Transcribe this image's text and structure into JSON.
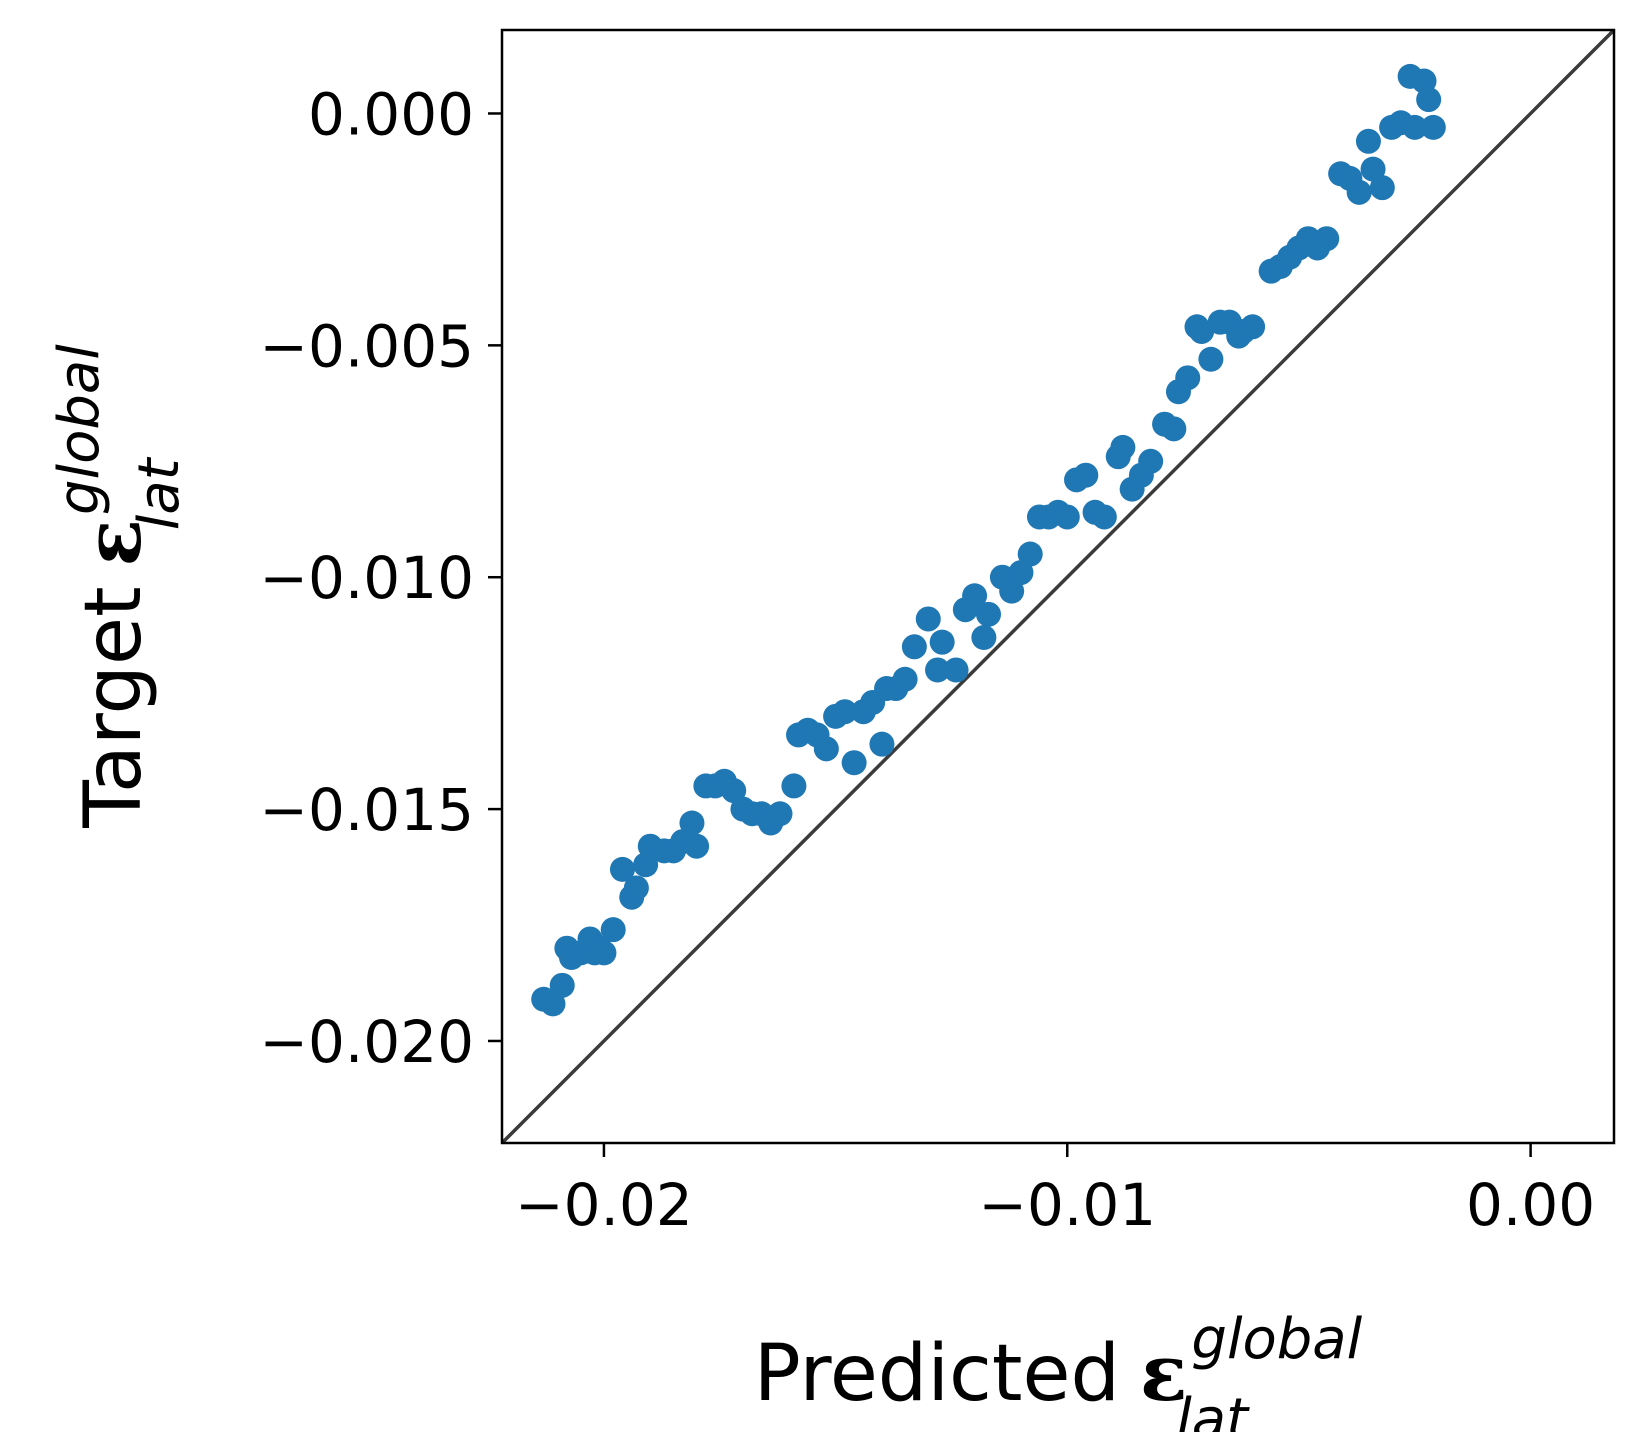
{
  "chart_data": {
    "type": "scatter",
    "xlabel": {
      "text": "Predicted",
      "symbol": "ε",
      "superscript": "global",
      "subscript": "lat"
    },
    "ylabel": {
      "text": "Target",
      "symbol": "ε",
      "superscript": "global",
      "subscript": "lat"
    },
    "xlim": [
      -0.0222,
      0.0018
    ],
    "ylim": [
      -0.0222,
      0.0018
    ],
    "x_ticks": [
      -0.02,
      -0.01,
      0.0
    ],
    "x_tick_labels": [
      "−0.02",
      "−0.01",
      "0.00"
    ],
    "y_ticks": [
      0.0,
      -0.005,
      -0.01,
      -0.015,
      -0.02
    ],
    "y_tick_labels": [
      "0.000",
      "−0.005",
      "−0.010",
      "−0.015",
      "−0.020"
    ],
    "reference_line": "y = x",
    "grid": false,
    "colors": {
      "points": "#1f77b4",
      "reference_line": "#3b3b3b",
      "frame": "#000000"
    },
    "points": [
      [
        -0.0213,
        -0.0191
      ],
      [
        -0.0211,
        -0.0192
      ],
      [
        -0.0209,
        -0.0188
      ],
      [
        -0.0208,
        -0.018
      ],
      [
        -0.0207,
        -0.0182
      ],
      [
        -0.0205,
        -0.0181
      ],
      [
        -0.0203,
        -0.0178
      ],
      [
        -0.0202,
        -0.0181
      ],
      [
        -0.0201,
        -0.018
      ],
      [
        -0.02,
        -0.0181
      ],
      [
        -0.0198,
        -0.0176
      ],
      [
        -0.0196,
        -0.0163
      ],
      [
        -0.0194,
        -0.0169
      ],
      [
        -0.0193,
        -0.0167
      ],
      [
        -0.0191,
        -0.0162
      ],
      [
        -0.019,
        -0.0158
      ],
      [
        -0.0187,
        -0.0159
      ],
      [
        -0.0185,
        -0.0159
      ],
      [
        -0.0183,
        -0.0157
      ],
      [
        -0.0181,
        -0.0153
      ],
      [
        -0.018,
        -0.0158
      ],
      [
        -0.0178,
        -0.0145
      ],
      [
        -0.0176,
        -0.0145
      ],
      [
        -0.0174,
        -0.0144
      ],
      [
        -0.0172,
        -0.0146
      ],
      [
        -0.017,
        -0.015
      ],
      [
        -0.0168,
        -0.0151
      ],
      [
        -0.0166,
        -0.0151
      ],
      [
        -0.0164,
        -0.0153
      ],
      [
        -0.0162,
        -0.0151
      ],
      [
        -0.0159,
        -0.0145
      ],
      [
        -0.0158,
        -0.0134
      ],
      [
        -0.0156,
        -0.0133
      ],
      [
        -0.0154,
        -0.0134
      ],
      [
        -0.0152,
        -0.0137
      ],
      [
        -0.015,
        -0.013
      ],
      [
        -0.0148,
        -0.0129
      ],
      [
        -0.0146,
        -0.014
      ],
      [
        -0.0144,
        -0.0129
      ],
      [
        -0.0142,
        -0.0127
      ],
      [
        -0.014,
        -0.0136
      ],
      [
        -0.0139,
        -0.0124
      ],
      [
        -0.0137,
        -0.0124
      ],
      [
        -0.0135,
        -0.0122
      ],
      [
        -0.0133,
        -0.0115
      ],
      [
        -0.013,
        -0.0109
      ],
      [
        -0.0128,
        -0.012
      ],
      [
        -0.0127,
        -0.0114
      ],
      [
        -0.0124,
        -0.012
      ],
      [
        -0.0122,
        -0.0107
      ],
      [
        -0.012,
        -0.0104
      ],
      [
        -0.0118,
        -0.0113
      ],
      [
        -0.0117,
        -0.0108
      ],
      [
        -0.0114,
        -0.01
      ],
      [
        -0.0112,
        -0.0103
      ],
      [
        -0.011,
        -0.0099
      ],
      [
        -0.0108,
        -0.0095
      ],
      [
        -0.0106,
        -0.0087
      ],
      [
        -0.0104,
        -0.0087
      ],
      [
        -0.0102,
        -0.0086
      ],
      [
        -0.01,
        -0.0087
      ],
      [
        -0.0098,
        -0.0079
      ],
      [
        -0.0096,
        -0.0078
      ],
      [
        -0.0094,
        -0.0086
      ],
      [
        -0.0092,
        -0.0087
      ],
      [
        -0.0089,
        -0.0074
      ],
      [
        -0.0088,
        -0.0072
      ],
      [
        -0.0086,
        -0.0081
      ],
      [
        -0.0084,
        -0.0078
      ],
      [
        -0.0082,
        -0.0075
      ],
      [
        -0.0079,
        -0.0067
      ],
      [
        -0.0077,
        -0.0068
      ],
      [
        -0.0076,
        -0.006
      ],
      [
        -0.0074,
        -0.0057
      ],
      [
        -0.0072,
        -0.0046
      ],
      [
        -0.0071,
        -0.0047
      ],
      [
        -0.0069,
        -0.0053
      ],
      [
        -0.0067,
        -0.0045
      ],
      [
        -0.0065,
        -0.0045
      ],
      [
        -0.0063,
        -0.0048
      ],
      [
        -0.0062,
        -0.0047
      ],
      [
        -0.006,
        -0.0046
      ],
      [
        -0.0056,
        -0.0034
      ],
      [
        -0.0054,
        -0.0033
      ],
      [
        -0.0052,
        -0.0031
      ],
      [
        -0.005,
        -0.0029
      ],
      [
        -0.0048,
        -0.0027
      ],
      [
        -0.0046,
        -0.0029
      ],
      [
        -0.0044,
        -0.0027
      ],
      [
        -0.0041,
        -0.0013
      ],
      [
        -0.0039,
        -0.0014
      ],
      [
        -0.0037,
        -0.0017
      ],
      [
        -0.0035,
        -0.0006
      ],
      [
        -0.0034,
        -0.0012
      ],
      [
        -0.0032,
        -0.0016
      ],
      [
        -0.003,
        -0.0003
      ],
      [
        -0.0028,
        -0.0002
      ],
      [
        -0.0026,
        0.0008
      ],
      [
        -0.0025,
        -0.0003
      ],
      [
        -0.0023,
        0.0007
      ],
      [
        -0.0022,
        0.0003
      ],
      [
        -0.0021,
        -0.0003
      ]
    ]
  }
}
